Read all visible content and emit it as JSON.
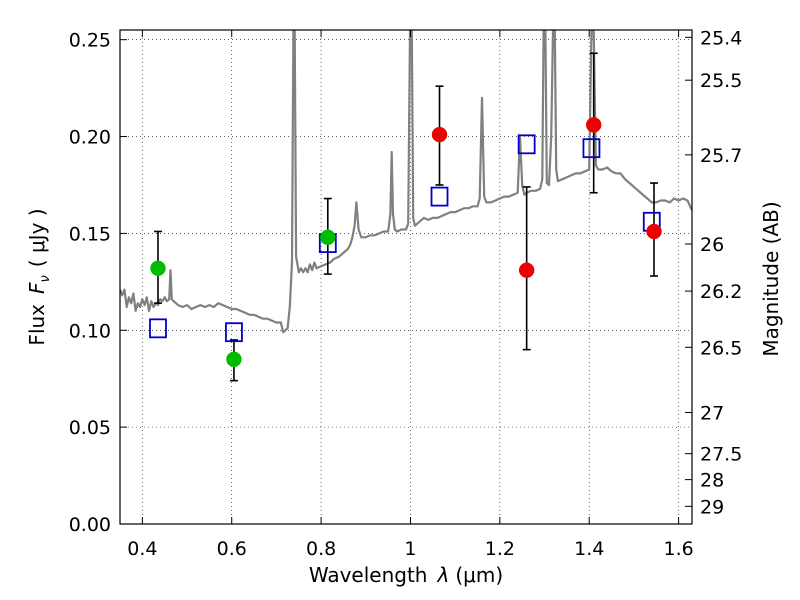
{
  "chart_data": {
    "type": "scatter",
    "xlabel_prefix": "Wavelength",
    "xlabel_symbol": "λ",
    "xlabel_unit": "(μm)",
    "ylabel_prefix": "Flux",
    "ylabel_symbol": "F",
    "ylabel_subscript": "ν",
    "ylabel_unit": "( μJy )",
    "y2label": "Magnitude (AB)",
    "xlim": [
      0.35,
      1.63
    ],
    "ylim": [
      0.0,
      0.255
    ],
    "grid": true,
    "x_ticks": [
      0.4,
      0.6,
      0.8,
      1.0,
      1.2,
      1.4,
      1.6
    ],
    "x_tick_labels": [
      "0.4",
      "0.6",
      "0.8",
      "1",
      "1.2",
      "1.4",
      "1.6"
    ],
    "y_ticks": [
      0.0,
      0.05,
      0.1,
      0.15,
      0.2,
      0.25
    ],
    "y_tick_labels": [
      "0.00",
      "0.05",
      "0.10",
      "0.15",
      "0.20",
      "0.25"
    ],
    "mag_ticks": [
      25.4,
      25.5,
      25.7,
      26,
      26.2,
      26.5,
      27,
      27.5,
      28,
      29
    ],
    "mag_tick_labels": [
      "25.4",
      "25.5",
      "25.7",
      "26",
      "26.2",
      "26.5",
      "27",
      "27.5",
      "28",
      "29"
    ],
    "colors": {
      "spectrum": "#808080",
      "green_points": "#00bb00",
      "red_points": "#ee0000",
      "model_squares": "#0000cc",
      "errorbar": "#000000"
    },
    "series": [
      {
        "name": "green-detections",
        "marker": "circle",
        "x": [
          0.435,
          0.605,
          0.815
        ],
        "y": [
          0.132,
          0.085,
          0.148
        ],
        "yerr_low": [
          0.114,
          0.074,
          0.129
        ],
        "yerr_high": [
          0.151,
          0.095,
          0.168
        ]
      },
      {
        "name": "red-detections",
        "marker": "circle",
        "x": [
          1.065,
          1.26,
          1.41,
          1.545
        ],
        "y": [
          0.201,
          0.131,
          0.206,
          0.151
        ],
        "yerr_low": [
          0.175,
          0.09,
          0.171,
          0.128
        ],
        "yerr_high": [
          0.226,
          0.174,
          0.243,
          0.176
        ]
      },
      {
        "name": "model-synthetic-photometry",
        "marker": "square-open",
        "x": [
          0.435,
          0.605,
          0.815,
          1.065,
          1.26,
          1.405,
          1.54
        ],
        "y": [
          0.101,
          0.099,
          0.145,
          0.169,
          0.196,
          0.194,
          0.156
        ]
      }
    ],
    "spectrum": [
      [
        0.35,
        0.121
      ],
      [
        0.355,
        0.118
      ],
      [
        0.36,
        0.121
      ],
      [
        0.365,
        0.112
      ],
      [
        0.37,
        0.117
      ],
      [
        0.375,
        0.114
      ],
      [
        0.38,
        0.119
      ],
      [
        0.385,
        0.11
      ],
      [
        0.39,
        0.114
      ],
      [
        0.395,
        0.112
      ],
      [
        0.4,
        0.116
      ],
      [
        0.405,
        0.113
      ],
      [
        0.41,
        0.117
      ],
      [
        0.415,
        0.11
      ],
      [
        0.42,
        0.115
      ],
      [
        0.425,
        0.112
      ],
      [
        0.43,
        0.114
      ],
      [
        0.435,
        0.113
      ],
      [
        0.44,
        0.116
      ],
      [
        0.445,
        0.115
      ],
      [
        0.45,
        0.117
      ],
      [
        0.455,
        0.115
      ],
      [
        0.46,
        0.116
      ],
      [
        0.463,
        0.131
      ],
      [
        0.466,
        0.116
      ],
      [
        0.47,
        0.115
      ],
      [
        0.48,
        0.113
      ],
      [
        0.49,
        0.112
      ],
      [
        0.5,
        0.113
      ],
      [
        0.51,
        0.111
      ],
      [
        0.52,
        0.112
      ],
      [
        0.53,
        0.113
      ],
      [
        0.54,
        0.112
      ],
      [
        0.55,
        0.113
      ],
      [
        0.56,
        0.112
      ],
      [
        0.57,
        0.114
      ],
      [
        0.58,
        0.113
      ],
      [
        0.59,
        0.112
      ],
      [
        0.6,
        0.111
      ],
      [
        0.61,
        0.111
      ],
      [
        0.62,
        0.11
      ],
      [
        0.63,
        0.109
      ],
      [
        0.64,
        0.108
      ],
      [
        0.65,
        0.108
      ],
      [
        0.66,
        0.107
      ],
      [
        0.67,
        0.106
      ],
      [
        0.68,
        0.106
      ],
      [
        0.69,
        0.105
      ],
      [
        0.7,
        0.104
      ],
      [
        0.71,
        0.104
      ],
      [
        0.715,
        0.099
      ],
      [
        0.72,
        0.1
      ],
      [
        0.725,
        0.101
      ],
      [
        0.73,
        0.112
      ],
      [
        0.735,
        0.135
      ],
      [
        0.738,
        0.255
      ],
      [
        0.741,
        0.255
      ],
      [
        0.744,
        0.138
      ],
      [
        0.75,
        0.13
      ],
      [
        0.755,
        0.132
      ],
      [
        0.76,
        0.13
      ],
      [
        0.765,
        0.132
      ],
      [
        0.77,
        0.13
      ],
      [
        0.775,
        0.134
      ],
      [
        0.78,
        0.131
      ],
      [
        0.785,
        0.135
      ],
      [
        0.79,
        0.132
      ],
      [
        0.8,
        0.133
      ],
      [
        0.81,
        0.134
      ],
      [
        0.82,
        0.135
      ],
      [
        0.83,
        0.137
      ],
      [
        0.84,
        0.138
      ],
      [
        0.85,
        0.14
      ],
      [
        0.86,
        0.142
      ],
      [
        0.865,
        0.144
      ],
      [
        0.87,
        0.148
      ],
      [
        0.875,
        0.154
      ],
      [
        0.879,
        0.166
      ],
      [
        0.884,
        0.152
      ],
      [
        0.89,
        0.148
      ],
      [
        0.9,
        0.148
      ],
      [
        0.91,
        0.149
      ],
      [
        0.92,
        0.149
      ],
      [
        0.93,
        0.15
      ],
      [
        0.94,
        0.151
      ],
      [
        0.95,
        0.151
      ],
      [
        0.955,
        0.16
      ],
      [
        0.958,
        0.192
      ],
      [
        0.961,
        0.16
      ],
      [
        0.965,
        0.152
      ],
      [
        0.97,
        0.151
      ],
      [
        0.98,
        0.152
      ],
      [
        0.99,
        0.152
      ],
      [
        0.995,
        0.155
      ],
      [
        0.999,
        0.255
      ],
      [
        1.003,
        0.255
      ],
      [
        1.006,
        0.158
      ],
      [
        1.01,
        0.154
      ],
      [
        1.02,
        0.156
      ],
      [
        1.03,
        0.158
      ],
      [
        1.04,
        0.157
      ],
      [
        1.05,
        0.158
      ],
      [
        1.06,
        0.158
      ],
      [
        1.07,
        0.159
      ],
      [
        1.08,
        0.16
      ],
      [
        1.09,
        0.161
      ],
      [
        1.1,
        0.161
      ],
      [
        1.11,
        0.162
      ],
      [
        1.12,
        0.163
      ],
      [
        1.13,
        0.163
      ],
      [
        1.14,
        0.164
      ],
      [
        1.15,
        0.164
      ],
      [
        1.155,
        0.168
      ],
      [
        1.16,
        0.22
      ],
      [
        1.165,
        0.169
      ],
      [
        1.17,
        0.166
      ],
      [
        1.18,
        0.166
      ],
      [
        1.19,
        0.167
      ],
      [
        1.2,
        0.168
      ],
      [
        1.21,
        0.169
      ],
      [
        1.22,
        0.169
      ],
      [
        1.23,
        0.17
      ],
      [
        1.24,
        0.171
      ],
      [
        1.245,
        0.2
      ],
      [
        1.25,
        0.175
      ],
      [
        1.255,
        0.17
      ],
      [
        1.26,
        0.171
      ],
      [
        1.27,
        0.172
      ],
      [
        1.28,
        0.172
      ],
      [
        1.29,
        0.173
      ],
      [
        1.295,
        0.178
      ],
      [
        1.298,
        0.255
      ],
      [
        1.302,
        0.255
      ],
      [
        1.305,
        0.176
      ],
      [
        1.31,
        0.175
      ],
      [
        1.315,
        0.2
      ],
      [
        1.319,
        0.255
      ],
      [
        1.323,
        0.255
      ],
      [
        1.326,
        0.183
      ],
      [
        1.33,
        0.177
      ],
      [
        1.34,
        0.178
      ],
      [
        1.35,
        0.179
      ],
      [
        1.36,
        0.18
      ],
      [
        1.37,
        0.181
      ],
      [
        1.38,
        0.181
      ],
      [
        1.39,
        0.182
      ],
      [
        1.4,
        0.183
      ],
      [
        1.405,
        0.255
      ],
      [
        1.41,
        0.255
      ],
      [
        1.415,
        0.185
      ],
      [
        1.42,
        0.183
      ],
      [
        1.43,
        0.183
      ],
      [
        1.44,
        0.184
      ],
      [
        1.45,
        0.182
      ],
      [
        1.46,
        0.181
      ],
      [
        1.47,
        0.181
      ],
      [
        1.48,
        0.178
      ],
      [
        1.49,
        0.176
      ],
      [
        1.5,
        0.174
      ],
      [
        1.51,
        0.172
      ],
      [
        1.52,
        0.17
      ],
      [
        1.53,
        0.168
      ],
      [
        1.54,
        0.166
      ],
      [
        1.55,
        0.166
      ],
      [
        1.56,
        0.167
      ],
      [
        1.57,
        0.167
      ],
      [
        1.58,
        0.166
      ],
      [
        1.59,
        0.168
      ],
      [
        1.6,
        0.167
      ],
      [
        1.61,
        0.168
      ],
      [
        1.62,
        0.167
      ],
      [
        1.63,
        0.162
      ]
    ]
  }
}
